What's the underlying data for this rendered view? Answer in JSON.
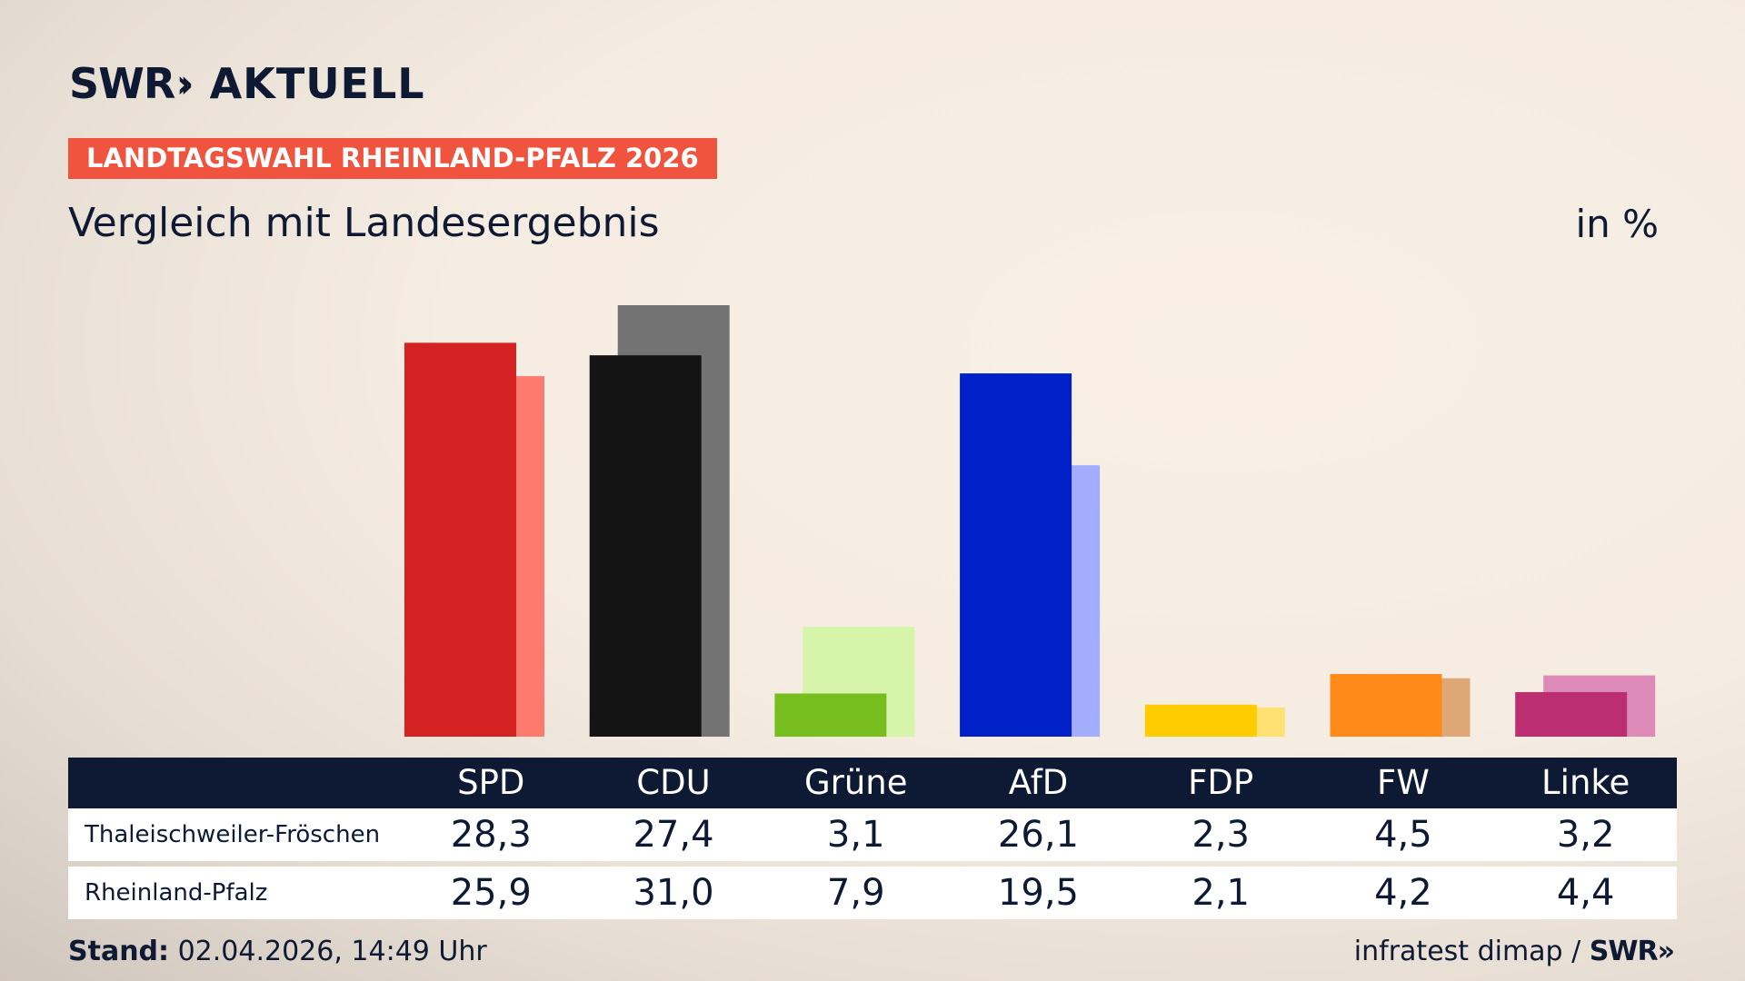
{
  "header": {
    "brand": "SWR",
    "brand_sub": "AKTUELL",
    "tag": "LANDTAGSWAHL RHEINLAND-PFALZ 2026",
    "subtitle": "Vergleich mit Landesergebnis",
    "unit": "in %"
  },
  "colors": {
    "tag_bg": "#f0533e",
    "header_bg": "#0e1a33"
  },
  "chart_data": {
    "type": "bar",
    "categories": [
      "SPD",
      "CDU",
      "Grüne",
      "AfD",
      "FDP",
      "FW",
      "Linke"
    ],
    "series": [
      {
        "name": "Thaleischweiler-Fröschen",
        "values": [
          28.3,
          27.4,
          3.1,
          26.1,
          2.3,
          4.5,
          3.2
        ],
        "colors": [
          "#d42121",
          "#141414",
          "#78bd1e",
          "#0021c8",
          "#ffcc00",
          "#ff8a1a",
          "#bb2f72"
        ]
      },
      {
        "name": "Rheinland-Pfalz",
        "values": [
          25.9,
          31.0,
          7.9,
          19.5,
          2.1,
          4.2,
          4.4
        ],
        "colors": [
          "#ff7a6e",
          "#737373",
          "#d6f5aa",
          "#a3adff",
          "#ffe173",
          "#dda876",
          "#de8ab8"
        ]
      }
    ],
    "ylim": [
      0,
      31
    ]
  },
  "table": {
    "columns": [
      "SPD",
      "CDU",
      "Grüne",
      "AfD",
      "FDP",
      "FW",
      "Linke"
    ],
    "rows": [
      {
        "label": "Thaleischweiler-Fröschen",
        "values": [
          "28,3",
          "27,4",
          "3,1",
          "26,1",
          "2,3",
          "4,5",
          "3,2"
        ]
      },
      {
        "label": "Rheinland-Pfalz",
        "values": [
          "25,9",
          "31,0",
          "7,9",
          "19,5",
          "2,1",
          "4,2",
          "4,4"
        ]
      }
    ]
  },
  "footer": {
    "stand_label": "Stand:",
    "stand_value": "02.04.2026, 14:49 Uhr",
    "source": "infratest dimap /",
    "source_brand": "SWR"
  }
}
